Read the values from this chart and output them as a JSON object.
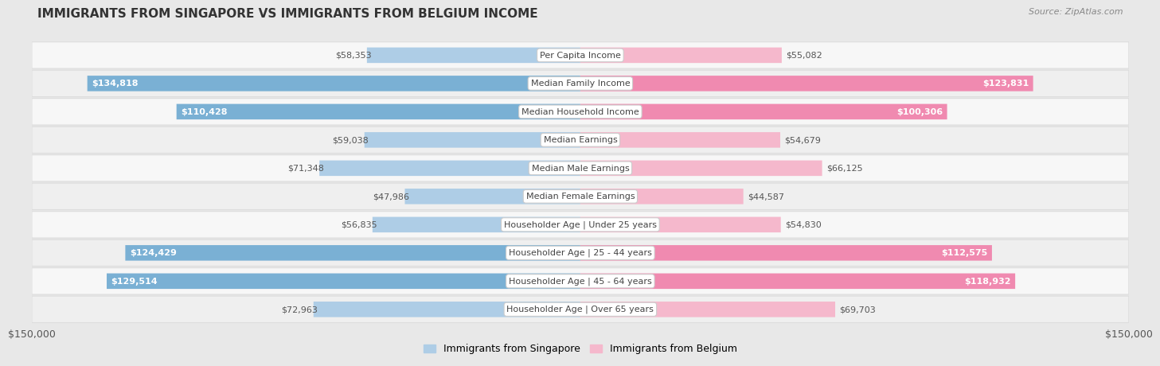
{
  "title": "IMMIGRANTS FROM SINGAPORE VS IMMIGRANTS FROM BELGIUM INCOME",
  "source": "Source: ZipAtlas.com",
  "categories": [
    "Per Capita Income",
    "Median Family Income",
    "Median Household Income",
    "Median Earnings",
    "Median Male Earnings",
    "Median Female Earnings",
    "Householder Age | Under 25 years",
    "Householder Age | 25 - 44 years",
    "Householder Age | 45 - 64 years",
    "Householder Age | Over 65 years"
  ],
  "singapore_values": [
    58353,
    134818,
    110428,
    59038,
    71348,
    47986,
    56835,
    124429,
    129514,
    72963
  ],
  "belgium_values": [
    55082,
    123831,
    100306,
    54679,
    66125,
    44587,
    54830,
    112575,
    118932,
    69703
  ],
  "singapore_labels": [
    "$58,353",
    "$134,818",
    "$110,428",
    "$59,038",
    "$71,348",
    "$47,986",
    "$56,835",
    "$124,429",
    "$129,514",
    "$72,963"
  ],
  "belgium_labels": [
    "$55,082",
    "$123,831",
    "$100,306",
    "$54,679",
    "$66,125",
    "$44,587",
    "$54,830",
    "$112,575",
    "$118,932",
    "$69,703"
  ],
  "singapore_color": "#7ab0d4",
  "belgium_color": "#f08ab0",
  "singapore_color_light": "#aecde6",
  "belgium_color_light": "#f5b8cc",
  "inside_label_threshold": 97000,
  "axis_max": 150000,
  "bar_height": 0.55,
  "row_bg_even": "#f7f7f7",
  "row_bg_odd": "#efefef",
  "row_border_color": "#dddddd",
  "legend_singapore": "Immigrants from Singapore",
  "legend_belgium": "Immigrants from Belgium",
  "xlabel_left": "$150,000",
  "xlabel_right": "$150,000",
  "title_fontsize": 11,
  "label_fontsize": 8,
  "cat_fontsize": 8
}
